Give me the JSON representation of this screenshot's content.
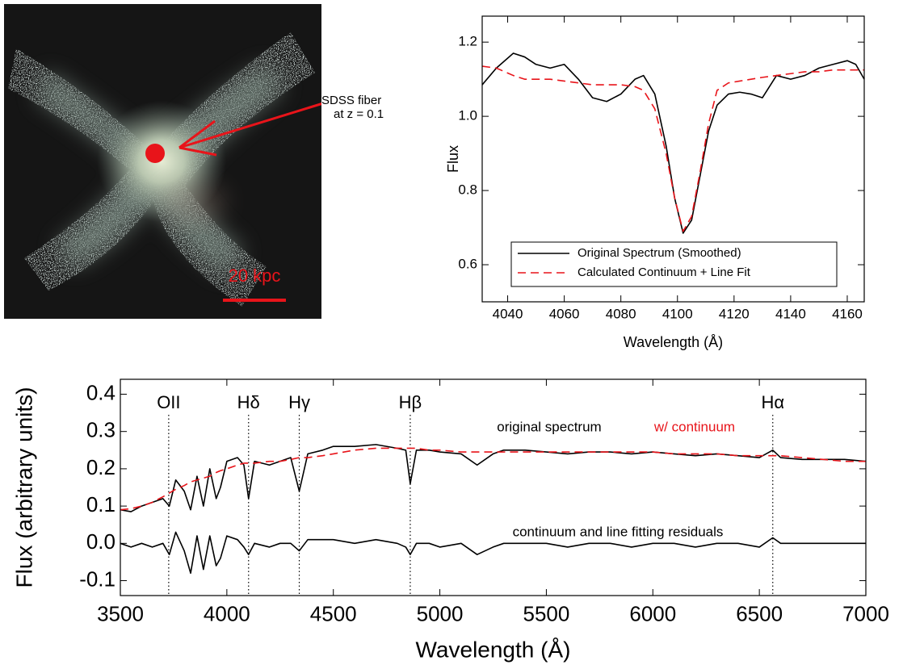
{
  "image_panel": {
    "annotation": [
      "SDSS fiber",
      "at z = 0.1"
    ],
    "scale_label": "20 kpc"
  },
  "chart_data": [
    {
      "type": "line",
      "xlabel": "Wavelength (Å)",
      "ylabel": "Flux",
      "xlim": [
        4031,
        4166
      ],
      "ylim": [
        0.5,
        1.27
      ],
      "xticks": [
        4040,
        4060,
        4080,
        4100,
        4120,
        4140,
        4160
      ],
      "yticks": [
        0.6,
        0.8,
        {
          "value": 1,
          "label": "1.0"
        },
        1.2
      ],
      "legend": "lower left",
      "x": [
        4031,
        4036,
        4042,
        4046,
        4050,
        4055,
        4060,
        4065,
        4070,
        4075,
        4080,
        4085,
        4088,
        4092,
        4096,
        4099,
        4102,
        4105,
        4108,
        4111,
        4114,
        4118,
        4122,
        4126,
        4130,
        4135,
        4140,
        4145,
        4150,
        4155,
        4160,
        4163,
        4166
      ],
      "series": [
        {
          "name": "Original Spectrum (Smoothed)",
          "color": "#000000",
          "dash": "solid",
          "values": [
            1.085,
            1.13,
            1.17,
            1.16,
            1.14,
            1.13,
            1.14,
            1.1,
            1.05,
            1.04,
            1.06,
            1.1,
            1.11,
            1.06,
            0.92,
            0.78,
            0.685,
            0.72,
            0.84,
            0.96,
            1.03,
            1.06,
            1.065,
            1.06,
            1.05,
            1.11,
            1.1,
            1.11,
            1.13,
            1.14,
            1.15,
            1.14,
            1.1
          ]
        },
        {
          "name": "Calculated Continuum + Line Fit",
          "color": "#e8141a",
          "dash": "dashed",
          "values": [
            1.135,
            1.13,
            1.11,
            1.1,
            1.1,
            1.1,
            1.095,
            1.09,
            1.085,
            1.085,
            1.085,
            1.08,
            1.07,
            1.02,
            0.9,
            0.78,
            0.69,
            0.73,
            0.85,
            0.98,
            1.07,
            1.09,
            1.095,
            1.1,
            1.105,
            1.11,
            1.115,
            1.12,
            1.12,
            1.125,
            1.125,
            1.125,
            1.125
          ]
        }
      ]
    },
    {
      "type": "line",
      "xlabel": "Wavelength (Å)",
      "ylabel": "Flux (arbitrary units)",
      "xlim": [
        3500,
        7000
      ],
      "ylim": [
        -0.14,
        0.44
      ],
      "xticks": [
        3500,
        4000,
        4500,
        5000,
        5500,
        6000,
        6500,
        7000
      ],
      "yticks": [
        -0.1,
        {
          "value": 0,
          "label": "0.0"
        },
        0.1,
        0.2,
        0.3,
        0.4
      ],
      "vlines": [
        {
          "label": "OII",
          "x": 3727
        },
        {
          "label": "Hδ",
          "x": 4102
        },
        {
          "label": "Hγ",
          "x": 4340
        },
        {
          "label": "Hβ",
          "x": 4861
        },
        {
          "label": "Hα",
          "x": 6563
        }
      ],
      "annotations": [
        {
          "text": "original spectrum",
          "color": "#000000"
        },
        {
          "text": "w/ continuum",
          "color": "#e8141a"
        },
        {
          "text": "continuum and line fitting residuals",
          "color": "#000000"
        }
      ],
      "x": [
        3500,
        3550,
        3600,
        3650,
        3700,
        3730,
        3760,
        3800,
        3830,
        3860,
        3890,
        3920,
        3950,
        3970,
        4000,
        4050,
        4080,
        4102,
        4130,
        4200,
        4250,
        4300,
        4340,
        4380,
        4450,
        4500,
        4600,
        4700,
        4800,
        4840,
        4861,
        4890,
        4950,
        5000,
        5100,
        5175,
        5250,
        5300,
        5400,
        5500,
        5600,
        5700,
        5800,
        5900,
        6000,
        6100,
        6200,
        6300,
        6400,
        6500,
        6563,
        6600,
        6700,
        6800,
        6900,
        7000
      ],
      "series": [
        {
          "color": "#000000",
          "dash": "solid",
          "values": [
            0.09,
            0.085,
            0.1,
            0.11,
            0.12,
            0.1,
            0.17,
            0.14,
            0.09,
            0.18,
            0.1,
            0.2,
            0.12,
            0.15,
            0.22,
            0.23,
            0.21,
            0.12,
            0.22,
            0.21,
            0.22,
            0.23,
            0.14,
            0.24,
            0.25,
            0.26,
            0.26,
            0.265,
            0.255,
            0.25,
            0.16,
            0.25,
            0.25,
            0.245,
            0.24,
            0.21,
            0.24,
            0.25,
            0.25,
            0.245,
            0.24,
            0.245,
            0.245,
            0.24,
            0.245,
            0.24,
            0.235,
            0.24,
            0.235,
            0.23,
            0.25,
            0.23,
            0.225,
            0.225,
            0.225,
            0.22
          ]
        },
        {
          "color": "#e8141a",
          "dash": "dashed",
          "values": [
            0.09,
            0.093,
            0.1,
            0.11,
            0.125,
            0.135,
            0.145,
            0.155,
            0.165,
            0.17,
            0.175,
            0.18,
            0.19,
            0.195,
            0.2,
            0.21,
            0.215,
            0.215,
            0.215,
            0.22,
            0.22,
            0.225,
            0.23,
            0.23,
            0.235,
            0.24,
            0.25,
            0.255,
            0.255,
            0.255,
            0.255,
            0.255,
            0.25,
            0.25,
            0.245,
            0.245,
            0.245,
            0.245,
            0.245,
            0.245,
            0.245,
            0.245,
            0.245,
            0.245,
            0.245,
            0.24,
            0.24,
            0.24,
            0.235,
            0.235,
            0.235,
            0.235,
            0.23,
            0.225,
            0.22,
            0.22
          ]
        },
        {
          "color": "#000000",
          "dash": "solid",
          "values": [
            0.0,
            -0.01,
            0.0,
            -0.01,
            0.0,
            -0.03,
            0.03,
            -0.02,
            -0.08,
            0.02,
            -0.07,
            0.02,
            -0.06,
            -0.04,
            0.02,
            0.01,
            -0.01,
            -0.03,
            0.0,
            -0.01,
            0.0,
            0.0,
            -0.02,
            0.01,
            0.01,
            0.01,
            0.0,
            0.01,
            0.0,
            -0.01,
            -0.03,
            0.0,
            0.0,
            -0.01,
            0.0,
            -0.03,
            -0.01,
            0.0,
            0.0,
            0.0,
            -0.01,
            0.0,
            0.0,
            -0.01,
            0.0,
            0.0,
            -0.01,
            0.0,
            0.0,
            -0.01,
            0.015,
            0.0,
            0.0,
            0.0,
            0.0,
            0.0
          ]
        }
      ]
    }
  ]
}
